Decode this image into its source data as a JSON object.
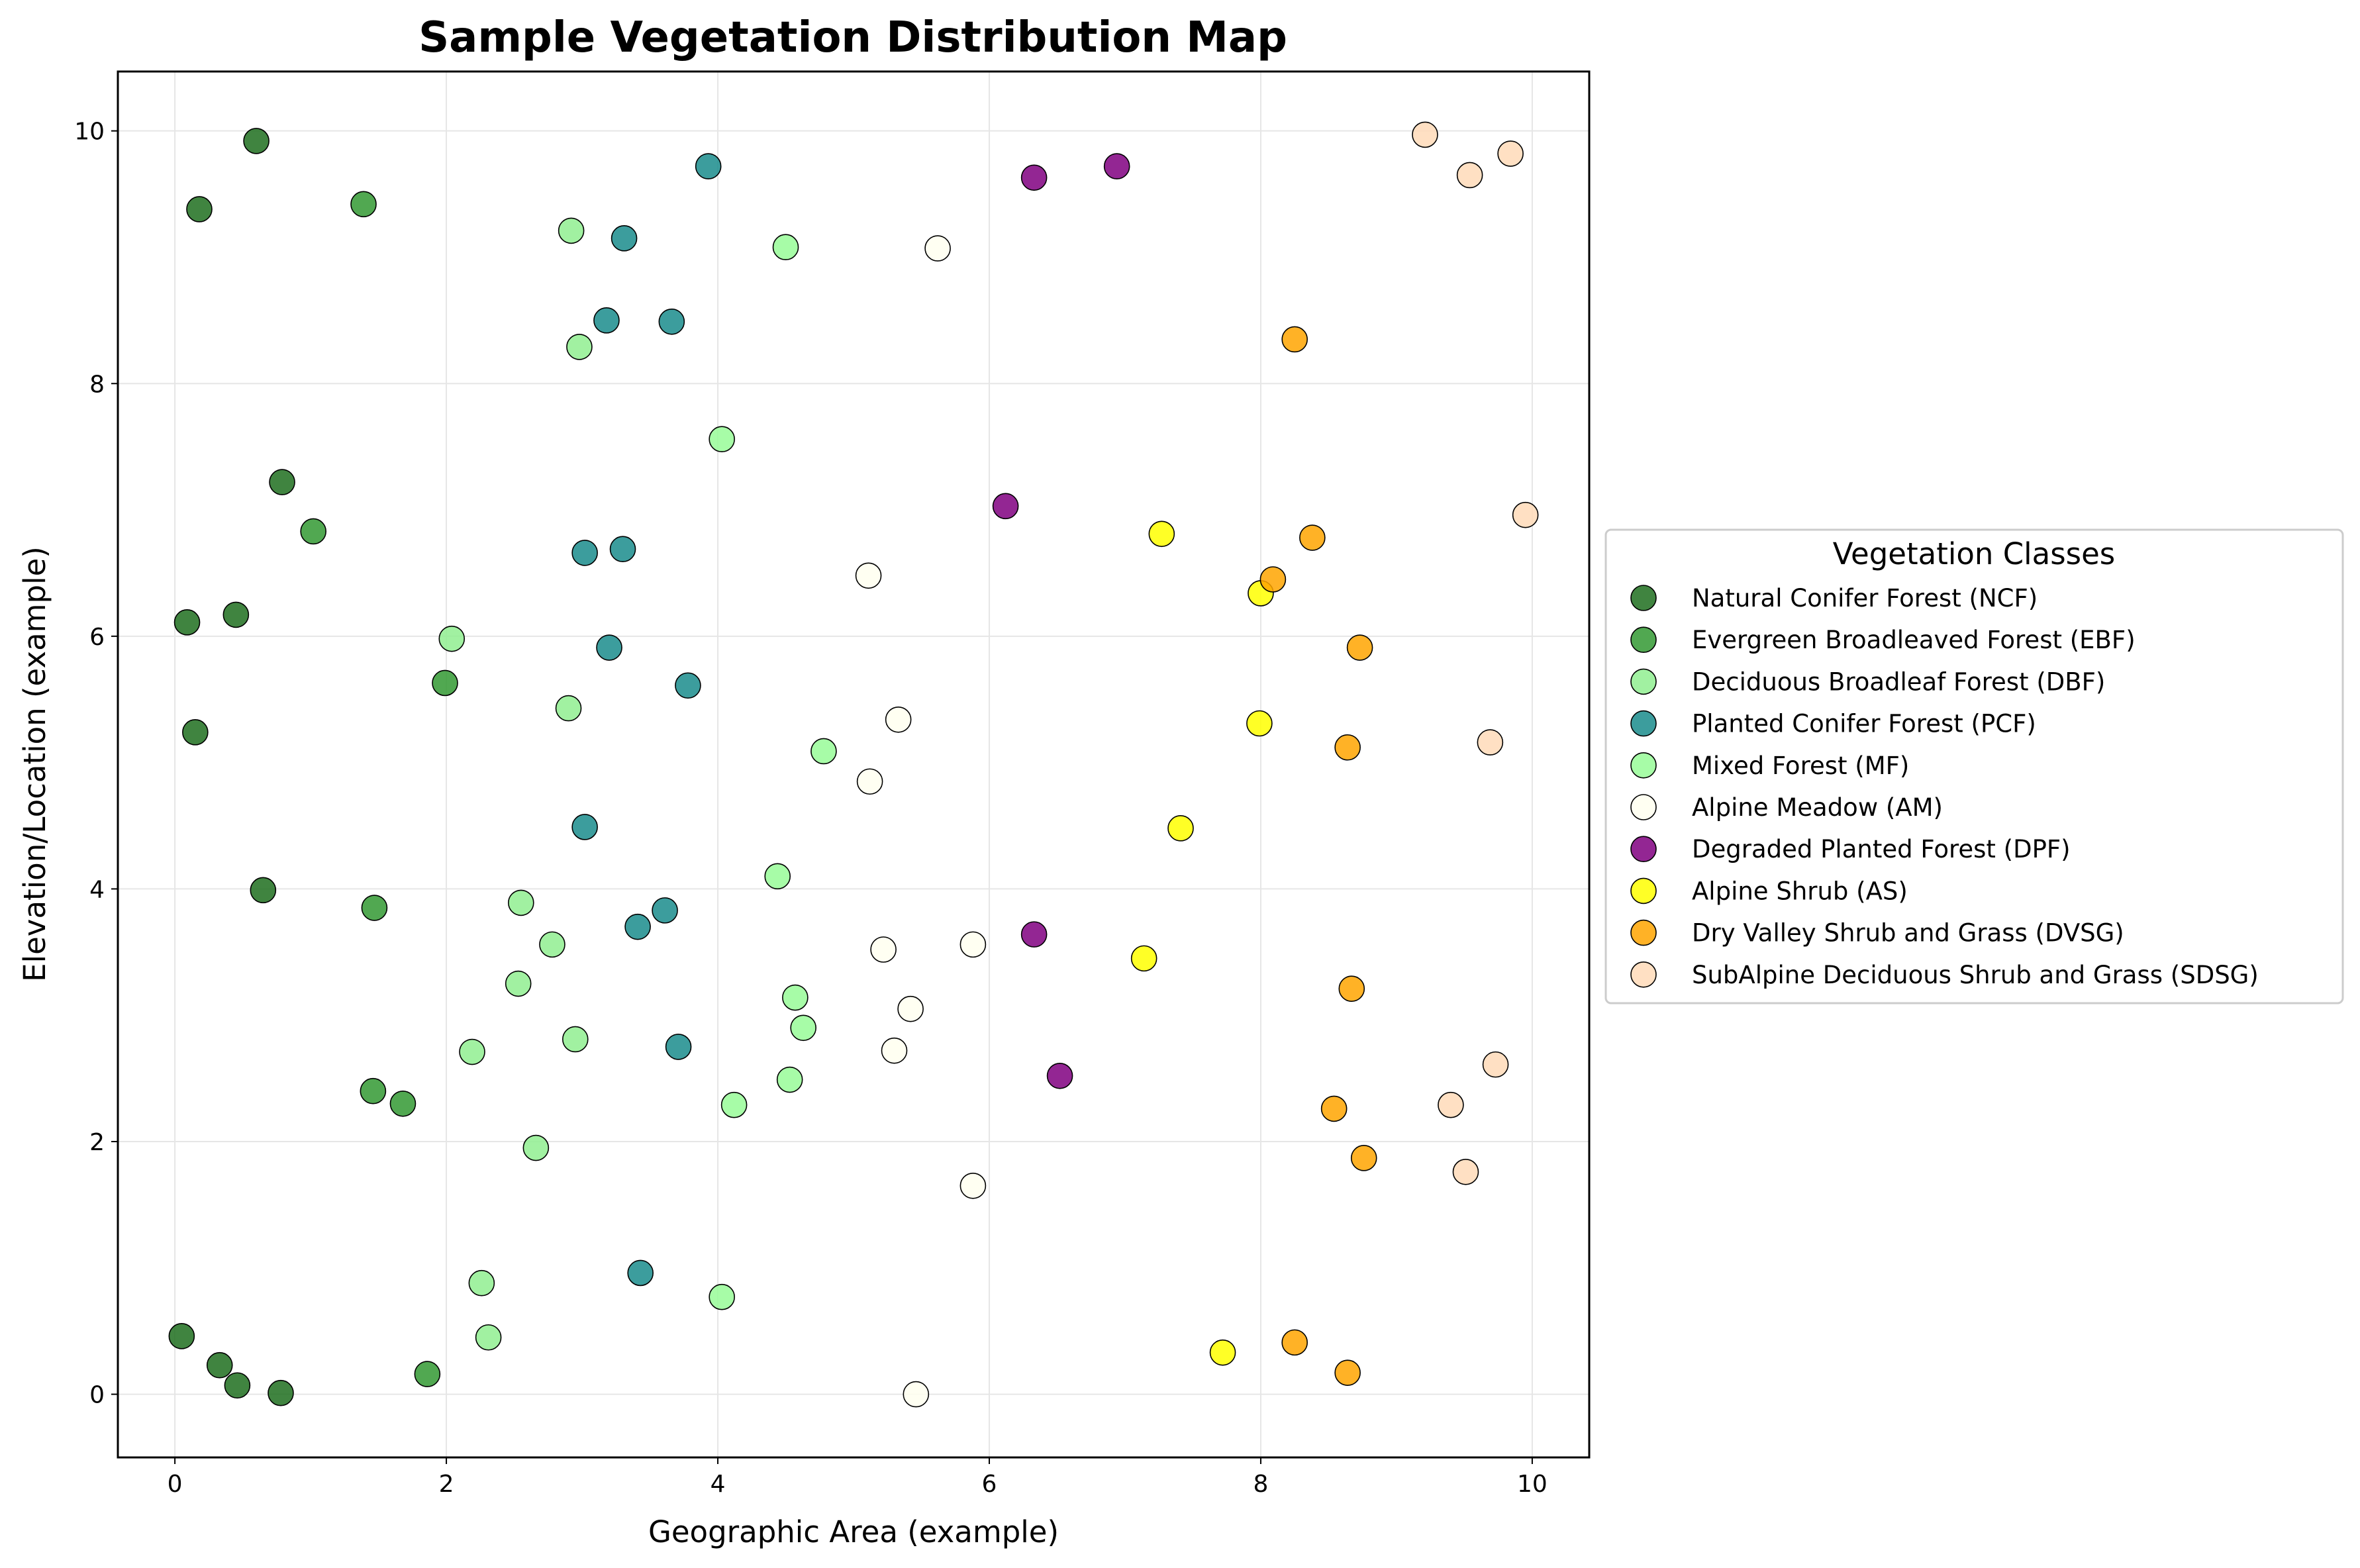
{
  "chart_data": {
    "type": "scatter",
    "title": "Sample Vegetation Distribution Map",
    "xlabel": "Geographic Area (example)",
    "ylabel": "Elevation/Location (example)",
    "xlim": [
      -0.42,
      10.42
    ],
    "ylim": [
      -0.5,
      10.47
    ],
    "xticks": [
      0,
      2,
      4,
      6,
      8,
      10
    ],
    "yticks": [
      0,
      2,
      4,
      6,
      8,
      10
    ],
    "grid": true,
    "legend_title": "Vegetation Classes",
    "legend_position": "outside-right",
    "series": [
      {
        "name": "Natural Conifer Forest (NCF)",
        "color": "#1f6e1f",
        "points": [
          [
            0.05,
            0.46
          ],
          [
            0.33,
            0.23
          ],
          [
            0.46,
            0.07
          ],
          [
            0.78,
            0.01
          ],
          [
            0.15,
            5.24
          ],
          [
            0.09,
            6.11
          ],
          [
            0.45,
            6.17
          ],
          [
            0.79,
            7.22
          ],
          [
            0.18,
            9.38
          ],
          [
            0.6,
            9.92
          ],
          [
            0.65,
            3.99
          ]
        ]
      },
      {
        "name": "Evergreen Broadleaved Forest (EBF)",
        "color": "#339933",
        "points": [
          [
            1.86,
            0.16
          ],
          [
            1.46,
            2.4
          ],
          [
            1.68,
            2.3
          ],
          [
            1.47,
            3.85
          ],
          [
            1.99,
            5.63
          ],
          [
            1.02,
            6.83
          ],
          [
            1.39,
            9.42
          ]
        ]
      },
      {
        "name": "Deciduous Broadleaf Forest (DBF)",
        "color": "#90ee90",
        "points": [
          [
            2.26,
            0.88
          ],
          [
            2.31,
            0.45
          ],
          [
            2.66,
            1.95
          ],
          [
            2.19,
            2.71
          ],
          [
            2.95,
            2.81
          ],
          [
            2.53,
            3.25
          ],
          [
            2.78,
            3.56
          ],
          [
            2.55,
            3.89
          ],
          [
            2.9,
            5.43
          ],
          [
            2.04,
            5.98
          ],
          [
            2.98,
            8.29
          ],
          [
            2.92,
            9.21
          ]
        ]
      },
      {
        "name": "Planted Conifer Forest (PCF)",
        "color": "#1a8c8c",
        "points": [
          [
            3.43,
            0.96
          ],
          [
            3.71,
            2.75
          ],
          [
            3.41,
            3.7
          ],
          [
            3.61,
            3.83
          ],
          [
            3.02,
            4.49
          ],
          [
            3.78,
            5.61
          ],
          [
            3.2,
            5.91
          ],
          [
            3.02,
            6.66
          ],
          [
            3.3,
            6.69
          ],
          [
            3.18,
            8.5
          ],
          [
            3.66,
            8.49
          ],
          [
            3.31,
            9.15
          ],
          [
            3.93,
            9.72
          ]
        ]
      },
      {
        "name": "Mixed Forest (MF)",
        "color": "#98fb98",
        "points": [
          [
            4.03,
            0.77
          ],
          [
            4.12,
            2.29
          ],
          [
            4.53,
            2.49
          ],
          [
            4.63,
            2.9
          ],
          [
            4.57,
            3.14
          ],
          [
            4.44,
            4.1
          ],
          [
            4.78,
            5.09
          ],
          [
            4.03,
            7.56
          ],
          [
            4.5,
            9.08
          ]
        ]
      },
      {
        "name": "Alpine Meadow (AM)",
        "color": "#fffff0",
        "points": [
          [
            5.46,
            0.0
          ],
          [
            5.88,
            1.65
          ],
          [
            5.3,
            2.72
          ],
          [
            5.42,
            3.05
          ],
          [
            5.22,
            3.52
          ],
          [
            5.88,
            3.56
          ],
          [
            5.12,
            4.85
          ],
          [
            5.33,
            5.34
          ],
          [
            5.11,
            6.48
          ],
          [
            5.62,
            9.07
          ]
        ]
      },
      {
        "name": "Degraded Planted Forest (DPF)",
        "color": "#800080",
        "points": [
          [
            6.52,
            2.52
          ],
          [
            6.33,
            3.64
          ],
          [
            6.12,
            7.03
          ],
          [
            6.33,
            9.63
          ],
          [
            6.94,
            9.72
          ]
        ]
      },
      {
        "name": "Alpine Shrub (AS)",
        "color": "#ffff00",
        "points": [
          [
            7.72,
            0.33
          ],
          [
            7.14,
            3.45
          ],
          [
            7.41,
            4.48
          ],
          [
            7.99,
            5.31
          ],
          [
            8.0,
            6.34
          ],
          [
            7.27,
            6.81
          ]
        ]
      },
      {
        "name": "Dry Valley Shrub and Grass (DVSG)",
        "color": "#ffa500",
        "points": [
          [
            8.25,
            0.41
          ],
          [
            8.64,
            0.17
          ],
          [
            8.76,
            1.87
          ],
          [
            8.54,
            2.26
          ],
          [
            8.67,
            3.21
          ],
          [
            8.64,
            5.12
          ],
          [
            8.73,
            5.91
          ],
          [
            8.09,
            6.45
          ],
          [
            8.38,
            6.78
          ],
          [
            8.25,
            8.35
          ]
        ]
      },
      {
        "name": "SubAlpine Deciduous Shrub and Grass (SDSG)",
        "color": "#ffdab9",
        "points": [
          [
            9.51,
            1.76
          ],
          [
            9.4,
            2.29
          ],
          [
            9.73,
            2.61
          ],
          [
            9.69,
            5.16
          ],
          [
            9.95,
            6.96
          ],
          [
            9.21,
            9.97
          ],
          [
            9.54,
            9.65
          ],
          [
            9.84,
            9.82
          ]
        ]
      }
    ]
  }
}
